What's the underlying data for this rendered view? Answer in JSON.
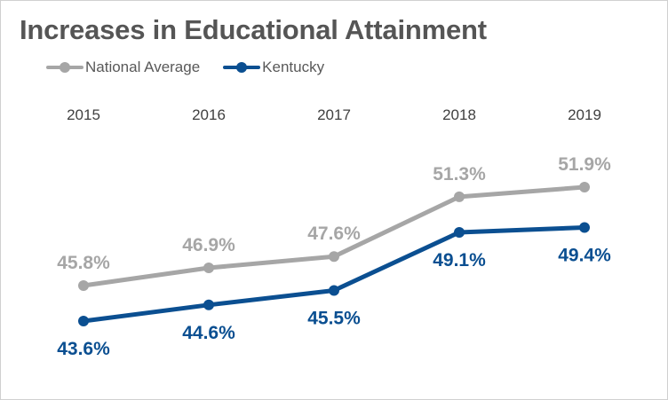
{
  "chart_data": {
    "type": "line",
    "title": "Increases in Educational Attainment",
    "categories": [
      "2015",
      "2016",
      "2017",
      "2018",
      "2019"
    ],
    "series": [
      {
        "name": "National Average",
        "values": [
          45.8,
          46.9,
          47.6,
          51.3,
          51.9
        ],
        "labels": [
          "45.8%",
          "46.9%",
          "47.6%",
          "51.3%",
          "51.9%"
        ],
        "color": "#a6a6a6",
        "label_position": "above"
      },
      {
        "name": "Kentucky",
        "values": [
          43.6,
          44.6,
          45.5,
          49.1,
          49.4
        ],
        "labels": [
          "43.6%",
          "44.6%",
          "45.5%",
          "49.1%",
          "49.4%"
        ],
        "color": "#0b4f91",
        "label_position": "below"
      }
    ],
    "xlabel": "",
    "ylabel": "",
    "ylim": [
      40,
      55
    ],
    "grid": false,
    "legend": "top-left",
    "x_axis_position": "top"
  }
}
